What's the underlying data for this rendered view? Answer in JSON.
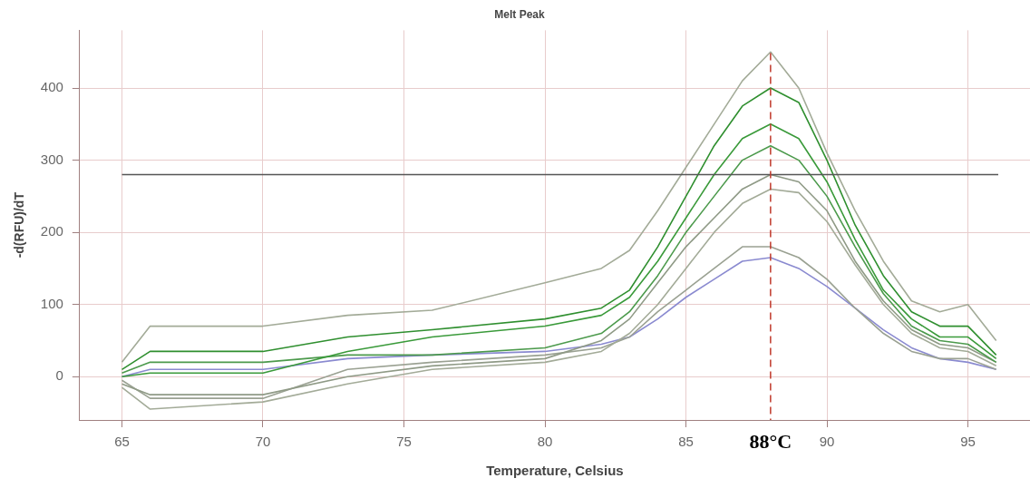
{
  "chart_data": {
    "type": "line",
    "title": "Melt Peak",
    "xlabel": "Temperature, Celsius",
    "ylabel": "-d(RFU)/dT",
    "x": [
      65,
      66,
      70,
      73,
      76,
      80,
      82,
      83,
      84,
      85,
      86,
      87,
      88,
      89,
      90,
      91,
      92,
      93,
      94,
      95,
      96
    ],
    "series": [
      {
        "color": "#a3ab98",
        "values": [
          20,
          70,
          70,
          85,
          92,
          130,
          150,
          175,
          230,
          290,
          350,
          410,
          450,
          400,
          310,
          230,
          160,
          105,
          90,
          100,
          50
        ]
      },
      {
        "color": "#2f8f2f",
        "values": [
          10,
          35,
          35,
          55,
          65,
          80,
          95,
          120,
          180,
          250,
          320,
          375,
          400,
          380,
          300,
          210,
          140,
          90,
          70,
          70,
          30
        ]
      },
      {
        "color": "#3a9a3a",
        "values": [
          0,
          5,
          5,
          35,
          55,
          70,
          85,
          110,
          160,
          220,
          280,
          330,
          350,
          330,
          270,
          190,
          120,
          80,
          55,
          55,
          25
        ]
      },
      {
        "color": "#4c9a4c",
        "values": [
          5,
          20,
          20,
          30,
          30,
          40,
          60,
          90,
          140,
          200,
          250,
          300,
          320,
          300,
          250,
          180,
          115,
          70,
          50,
          45,
          20
        ]
      },
      {
        "color": "#8f9a86",
        "values": [
          -10,
          -25,
          -25,
          0,
          15,
          25,
          50,
          80,
          130,
          180,
          220,
          260,
          280,
          270,
          230,
          160,
          105,
          65,
          45,
          40,
          20
        ]
      },
      {
        "color": "#a3ab98",
        "values": [
          -15,
          -45,
          -35,
          -10,
          10,
          20,
          35,
          60,
          100,
          150,
          200,
          240,
          260,
          255,
          215,
          155,
          100,
          60,
          40,
          35,
          15
        ]
      },
      {
        "color": "#9aa192",
        "values": [
          -5,
          -30,
          -30,
          10,
          20,
          30,
          40,
          55,
          90,
          120,
          150,
          180,
          180,
          165,
          135,
          95,
          60,
          35,
          25,
          25,
          10
        ]
      },
      {
        "color": "#8a8ad0",
        "values": [
          0,
          10,
          10,
          25,
          30,
          35,
          45,
          55,
          80,
          110,
          135,
          160,
          165,
          150,
          125,
          95,
          65,
          40,
          25,
          20,
          10
        ]
      }
    ],
    "xlim": [
      63.5,
      97.2
    ],
    "ylim": [
      -60,
      480
    ],
    "xticks": [
      65,
      70,
      75,
      80,
      85,
      90,
      95
    ],
    "yticks": [
      0,
      100,
      200,
      300,
      400
    ],
    "ref_lines": [
      {
        "axis": "y",
        "value": 280,
        "color": "#555555",
        "line_style": "solid"
      },
      {
        "axis": "x",
        "value": 88,
        "label": "88°C",
        "color": "#c0392b",
        "line_style": "dashed"
      }
    ],
    "grid": true,
    "legend": false,
    "marker": "none",
    "line_style": "solid"
  }
}
